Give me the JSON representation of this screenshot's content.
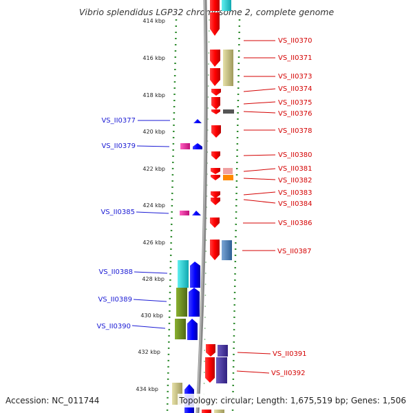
{
  "title": "Vibrio splendidus LGP32 chromosome 2, complete genome",
  "footer": {
    "accession": "Accession: NC_011744",
    "topology": "Topology: circular; Length: 1,675,519 bp; Genes: 1,506"
  },
  "ruler": [
    "414 kbp",
    "416 kbp",
    "418 kbp",
    "420 kbp",
    "422 kbp",
    "424 kbp",
    "426 kbp",
    "428 kbp",
    "430 kbp",
    "432 kbp",
    "434 kbp"
  ],
  "genes_right": [
    "VS_II0370",
    "VS_II0371",
    "VS_II0373",
    "VS_II0374",
    "VS_II0375",
    "VS_II0376",
    "VS_II0378",
    "VS_II0380",
    "VS_II0381",
    "VS_II0382",
    "VS_II0383",
    "VS_II0384",
    "VS_II0386",
    "VS_II0387",
    "VS_II0391",
    "VS_II0392"
  ],
  "genes_left": [
    "VS_II0377",
    "VS_II0379",
    "VS_II0385",
    "VS_II0388",
    "VS_II0389",
    "VS_II0390"
  ],
  "colors": {
    "forward_gene": "#ff0000",
    "reverse_gene": "#0000ff",
    "right_label": "#d40000",
    "left_label": "#1a1ad4",
    "backbone": "#888888",
    "ticks": "#2e8b2e"
  }
}
